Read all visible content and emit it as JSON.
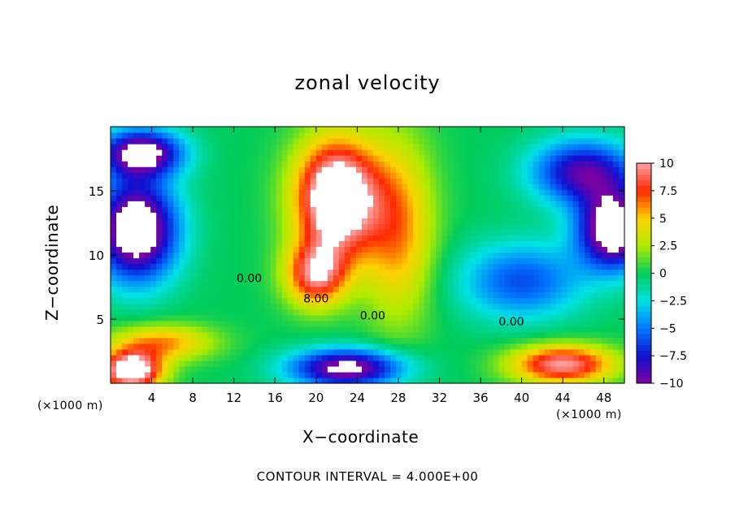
{
  "chart_data": {
    "type": "heatmap",
    "title": "zonal velocity",
    "xlabel": "X−coordinate",
    "ylabel": "Z−coordinate",
    "x_unit_label": "(×1000 m)",
    "z_unit_label": "(×1000 m)",
    "footer": "CONTOUR INTERVAL = 4.000E+00",
    "xlim": [
      0,
      50
    ],
    "ylim": [
      0,
      20
    ],
    "x_ticks": [
      4,
      8,
      12,
      16,
      20,
      24,
      28,
      32,
      36,
      40,
      44,
      48
    ],
    "y_ticks": [
      5,
      10,
      15
    ],
    "colorbar": {
      "ticks": [
        10,
        7.5,
        5,
        2.5,
        0,
        -2.5,
        -5,
        -7.5,
        -10
      ],
      "tick_labels": [
        "10",
        "7.5",
        "5",
        "2.5",
        "0",
        "−2.5",
        "−5",
        "−7.5",
        "−10"
      ],
      "range": [
        -10,
        10
      ],
      "out_of_range_color": "#ffffff"
    },
    "contour_labels": [
      {
        "text": "0.00",
        "x": 13.5,
        "z": 8.2
      },
      {
        "text": "8.00",
        "x": 20.0,
        "z": 6.6
      },
      {
        "text": "0.00",
        "x": 25.5,
        "z": 5.3
      },
      {
        "text": "0.00",
        "x": 39.0,
        "z": 4.8
      }
    ],
    "field_features": [
      {
        "name": "positive core",
        "x": 22,
        "z": 14.5,
        "value": 14,
        "sx": 4,
        "sz": 4.5
      },
      {
        "name": "positive lobe",
        "x": 20,
        "z": 8.5,
        "value": 9,
        "sx": 3,
        "sz": 2.5
      },
      {
        "name": "positive ridge",
        "x": 28,
        "z": 12,
        "value": 6,
        "sx": 3.5,
        "sz": 7
      },
      {
        "name": "near-surface jet west",
        "x": 5,
        "z": 3.2,
        "value": 6,
        "sx": 5,
        "sz": 1.4
      },
      {
        "name": "surface max west",
        "x": 2,
        "z": 1,
        "value": 13,
        "sx": 3,
        "sz": 1.5
      },
      {
        "name": "surface max east",
        "x": 44,
        "z": 1.5,
        "value": 10,
        "sx": 5,
        "sz": 1.5
      },
      {
        "name": "negative upper west",
        "x": 2.5,
        "z": 12,
        "value": -13,
        "sx": 4,
        "sz": 4
      },
      {
        "name": "negative top west",
        "x": 3,
        "z": 18,
        "value": -11,
        "sx": 4,
        "sz": 1.8
      },
      {
        "name": "negative upper east",
        "x": 49,
        "z": 12,
        "value": -13,
        "sx": 3.5,
        "sz": 3
      },
      {
        "name": "negative top east",
        "x": 46,
        "z": 16.5,
        "value": -9,
        "sx": 5,
        "sz": 2.5
      },
      {
        "name": "negative low center",
        "x": 23,
        "z": 1.2,
        "value": -11,
        "sx": 5.5,
        "sz": 1.5
      },
      {
        "name": "negative trough",
        "x": 40,
        "z": 8,
        "value": -6,
        "sx": 6,
        "sz": 3
      }
    ]
  }
}
